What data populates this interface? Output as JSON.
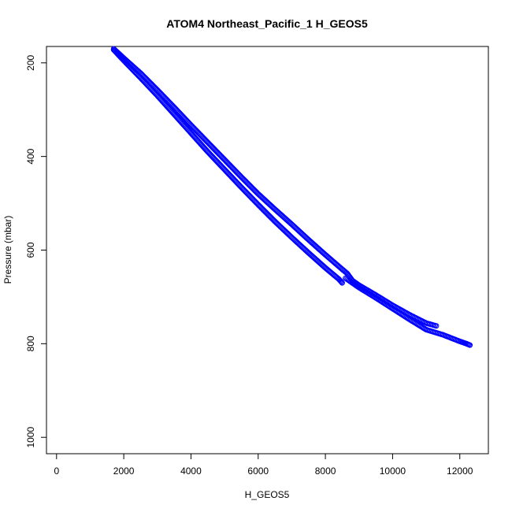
{
  "chart_data": {
    "type": "scatter",
    "title": "ATOM4 Northeast_Pacific_1 H_GEOS5",
    "xlabel": "H_GEOS5",
    "ylabel": "Pressure (mbar)",
    "xlim": [
      -300,
      12850
    ],
    "ylim": [
      1035,
      165
    ],
    "y_reversed": true,
    "grid": false,
    "legend": "none",
    "x_ticks": [
      0,
      2000,
      4000,
      6000,
      8000,
      10000,
      12000
    ],
    "x_tick_labels": [
      "0",
      "2000",
      "4000",
      "6000",
      "8000",
      "10000",
      "12000"
    ],
    "y_ticks": [
      200,
      400,
      600,
      800,
      1000
    ],
    "y_tick_labels": [
      "200",
      "400",
      "600",
      "800",
      "1000"
    ],
    "marker": "open-circle",
    "point_color": "#0000ff",
    "series": [
      {
        "x": [
          1700,
          2000,
          2500,
          3000,
          3500,
          4000,
          4500,
          5000,
          5500,
          6000,
          6500,
          7000,
          7500,
          8000,
          8500,
          8650,
          8800,
          9000,
          9500,
          10000,
          10500,
          11000,
          11300
        ],
        "y": [
          170,
          190,
          222,
          258,
          295,
          333,
          370,
          407,
          444,
          480,
          513,
          545,
          578,
          610,
          641,
          650,
          665,
          675,
          696,
          718,
          738,
          756,
          762
        ]
      },
      {
        "x": [
          1700,
          2000,
          2500,
          3000,
          3500,
          4000,
          4500,
          5000,
          5500,
          6000,
          6500,
          7000,
          7500,
          8000,
          8400,
          8500
        ],
        "y": [
          172,
          195,
          232,
          270,
          310,
          350,
          390,
          428,
          466,
          503,
          539,
          573,
          606,
          638,
          662,
          670
        ]
      },
      {
        "x": [
          8600,
          9000,
          9500,
          10000,
          10500,
          11000,
          11500,
          12000,
          12200,
          12300
        ],
        "y": [
          660,
          680,
          702,
          725,
          748,
          770,
          781,
          795,
          800,
          803
        ]
      }
    ]
  }
}
